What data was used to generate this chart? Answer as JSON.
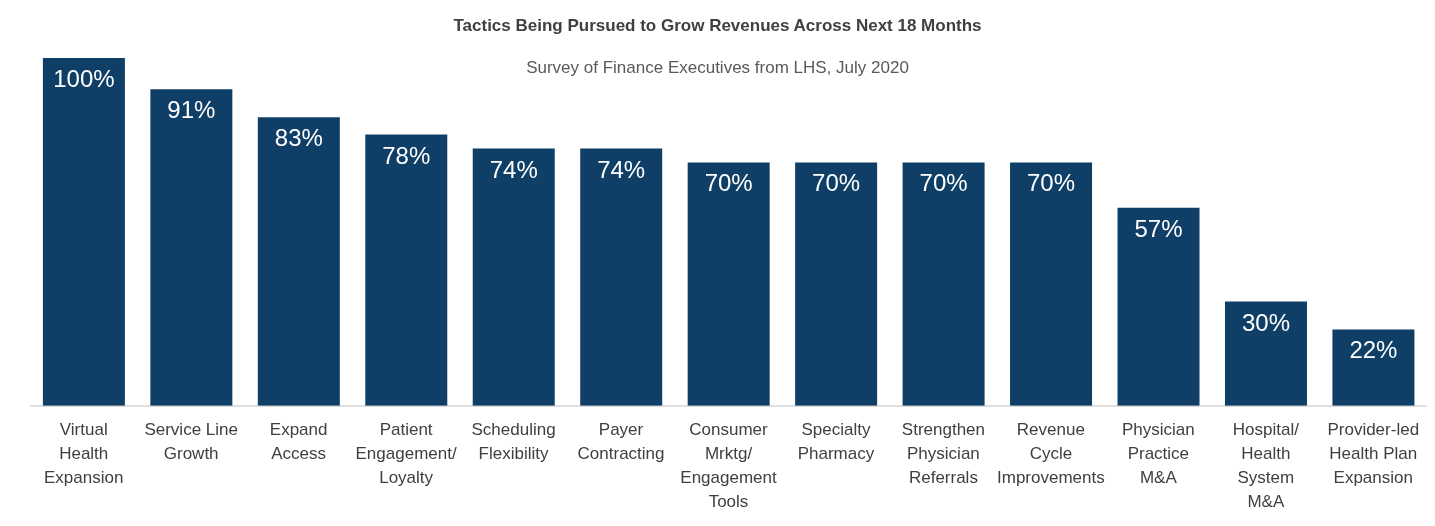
{
  "chart_data": {
    "type": "bar",
    "title": "Tactics Being Pursued to Grow Revenues Across Next 18 Months",
    "subtitle": "Survey of Finance Executives from LHS, July 2020",
    "categories": [
      "Virtual Health Expansion",
      "Service Line Growth",
      "Expand Access",
      "Patient Engagement/ Loyalty",
      "Scheduling Flexibility",
      "Payer Contracting",
      "Consumer Mrktg/ Engagement Tools",
      "Specialty Pharmacy",
      "Strengthen Physician Referrals",
      "Revenue Cycle Improvements",
      "Physician Practice M&A",
      "Hospital/ Health System M&A",
      "Provider-led Health Plan Expansion"
    ],
    "values": [
      100,
      91,
      83,
      78,
      74,
      74,
      70,
      70,
      70,
      70,
      57,
      30,
      22
    ],
    "value_labels": [
      "100%",
      "91%",
      "83%",
      "78%",
      "74%",
      "74%",
      "70%",
      "70%",
      "70%",
      "70%",
      "57%",
      "30%",
      "22%"
    ],
    "color": "#0f3f66",
    "ylim": [
      0,
      100
    ],
    "tick_labels": "x",
    "grid": false,
    "legend": false
  }
}
